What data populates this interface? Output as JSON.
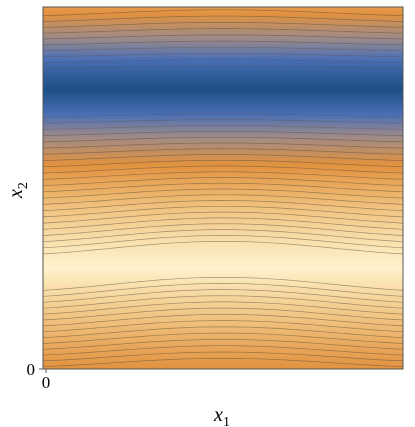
{
  "chart_data": {
    "type": "contour",
    "title": "",
    "xlabel": "x",
    "xlabel_sub": "1",
    "ylabel": "x",
    "ylabel_sub": "2",
    "x_ticks": [
      "0"
    ],
    "y_ticks": [
      "0"
    ],
    "xlim": [
      0,
      1
    ],
    "ylim": [
      0,
      1
    ],
    "grid": false,
    "legend": "none",
    "contour_levels": 30,
    "colormap": [
      "#e0883b",
      "#f2b36e",
      "#fff3cd",
      "#e9a155",
      "#9c8a8a",
      "#4a6fb5",
      "#1e4f86"
    ],
    "colors": {
      "frame": "#555555",
      "contour_line": "#5a4a3a",
      "low": "#fff3cd",
      "mid": "#e2923f",
      "high": "#1e4f86"
    },
    "field": {
      "low_band_y": 0.28,
      "high_band_y": 0.77,
      "wave_amplitude": 0.02
    }
  }
}
